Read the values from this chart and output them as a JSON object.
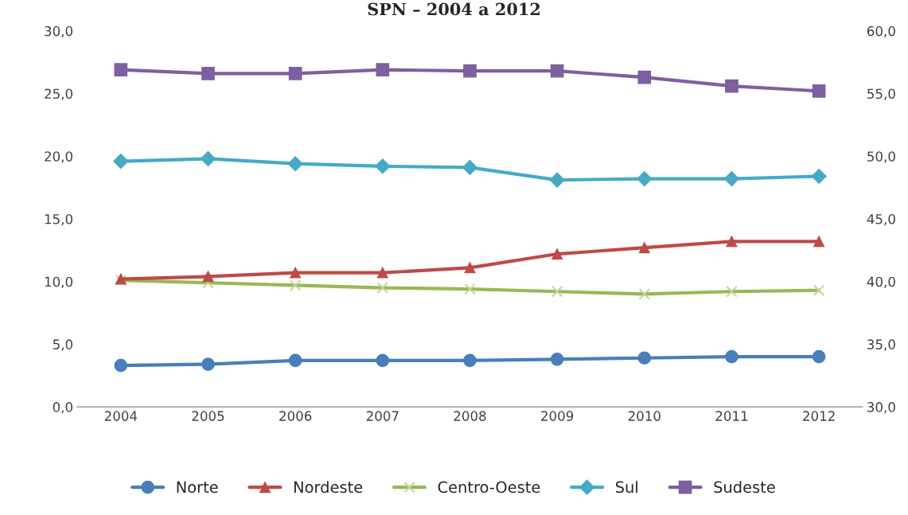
{
  "chart_data": {
    "type": "line",
    "title": "SPN – 2004 a 2012",
    "categories": [
      "2004",
      "2005",
      "2006",
      "2007",
      "2008",
      "2009",
      "2010",
      "2011",
      "2012"
    ],
    "series": [
      {
        "name": "Norte",
        "color": "#4a7ebb",
        "marker": "circle",
        "values": [
          3.3,
          3.4,
          3.7,
          3.7,
          3.7,
          3.8,
          3.9,
          4.0,
          4.0
        ]
      },
      {
        "name": "Nordeste",
        "color": "#be4b48",
        "marker": "triangle",
        "values": [
          10.2,
          10.4,
          10.7,
          10.7,
          11.1,
          12.2,
          12.7,
          13.2,
          13.2
        ]
      },
      {
        "name": "Centro-Oeste",
        "color": "#98b954",
        "marker": "cross",
        "values": [
          10.1,
          9.9,
          9.7,
          9.5,
          9.4,
          9.2,
          9.0,
          9.2,
          9.3
        ]
      },
      {
        "name": "Sul",
        "color": "#46aac5",
        "marker": "diamond",
        "values": [
          19.6,
          19.8,
          19.4,
          19.2,
          19.1,
          18.1,
          18.2,
          18.2,
          18.4
        ]
      },
      {
        "name": "Sudeste",
        "color": "#7d60a0",
        "marker": "square",
        "axis": "y2",
        "values": [
          56.9,
          56.6,
          56.6,
          56.9,
          56.8,
          56.8,
          56.3,
          55.6,
          55.2
        ]
      }
    ],
    "ylim": [
      0,
      30
    ],
    "yticks": [
      {
        "value": 0,
        "label": "0,0"
      },
      {
        "value": 5,
        "label": "5,0"
      },
      {
        "value": 10,
        "label": "10,0"
      },
      {
        "value": 15,
        "label": "15,0"
      },
      {
        "value": 20,
        "label": "20,0"
      },
      {
        "value": 25,
        "label": "25,0"
      },
      {
        "value": 30,
        "label": "30,0"
      }
    ],
    "y2lim": [
      30,
      60
    ],
    "y2ticks": [
      {
        "value": 30,
        "label": "30,0"
      },
      {
        "value": 35,
        "label": "35,0"
      },
      {
        "value": 40,
        "label": "40,0"
      },
      {
        "value": 45,
        "label": "45,0"
      },
      {
        "value": 50,
        "label": "50,0"
      },
      {
        "value": 55,
        "label": "55,0"
      },
      {
        "value": 60,
        "label": "60,0"
      }
    ],
    "legend": "bottom",
    "grid": false
  }
}
